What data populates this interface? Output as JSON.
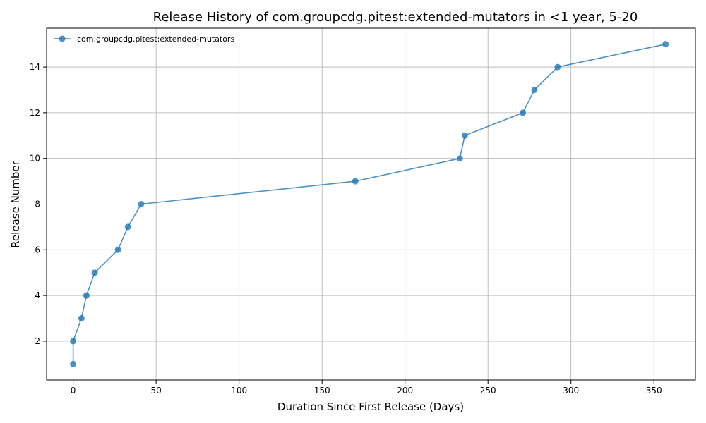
{
  "chart_data": {
    "type": "line",
    "title": "Release History of com.groupcdg.pitest:extended-mutators in <1 year, 5-20",
    "xlabel": "Duration Since First Release (Days)",
    "ylabel": "Release Number",
    "xlim": [
      -16,
      375
    ],
    "ylim": [
      0.3,
      15.7
    ],
    "xticks": [
      0,
      50,
      100,
      150,
      200,
      250,
      300,
      350
    ],
    "yticks": [
      2,
      4,
      6,
      8,
      10,
      12,
      14
    ],
    "grid": true,
    "legend_position": "upper-left",
    "series": [
      {
        "name": "com.groupcdg.pitest:extended-mutators",
        "color": "#1f77b4",
        "marker": "circle",
        "x": [
          0,
          0,
          5,
          8,
          13,
          27,
          33,
          41,
          170,
          233,
          236,
          271,
          278,
          292,
          357
        ],
        "y": [
          1,
          2,
          3,
          4,
          5,
          6,
          7,
          8,
          9,
          10,
          11,
          12,
          13,
          14,
          15
        ]
      }
    ]
  }
}
